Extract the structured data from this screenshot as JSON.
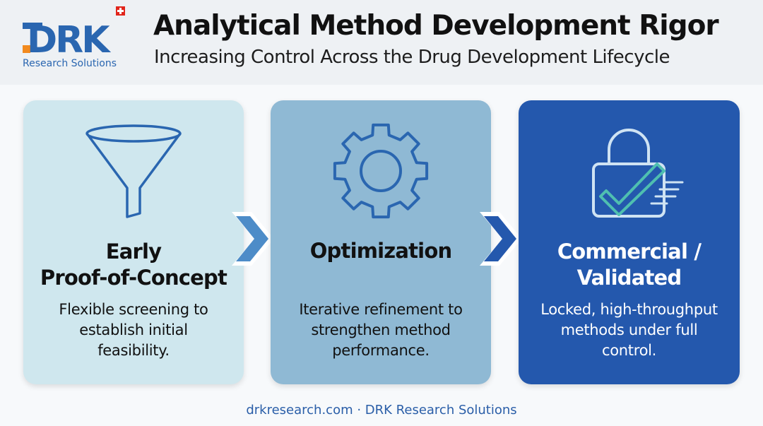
{
  "header": {
    "logo_text": "DRK",
    "logo_subtext": "Research Solutions",
    "title": "Analytical Method Development Rigor",
    "subtitle": "Increasing Control Across the Drug Development Lifecycle"
  },
  "stages": [
    {
      "icon": "funnel-icon",
      "title_line1": "Early",
      "title_line2": "Proof-of-Concept",
      "desc_line1": "Flexible screening to",
      "desc_line2": "establish initial",
      "desc_line3": "feasibility."
    },
    {
      "icon": "gear-icon",
      "title_line1": "Optimization",
      "title_line2": "",
      "desc_line1": "Iterative refinement to",
      "desc_line2": "strengthen method",
      "desc_line3": "performance."
    },
    {
      "icon": "lock-check-icon",
      "title_line1": "Commercial /",
      "title_line2": "Validated",
      "desc_line1": "Locked, high-throughput",
      "desc_line2": "methods under full",
      "desc_line3": "control."
    }
  ],
  "footer": {
    "text": "drkresearch.com · DRK Research Solutions"
  },
  "colors": {
    "stage1_bg": "#cfe7ee",
    "stage2_bg": "#8fb9d4",
    "stage3_bg": "#2458ad",
    "brand_blue": "#2a66b0",
    "brand_orange": "#f28a1e",
    "swiss_red": "#e1251b"
  }
}
